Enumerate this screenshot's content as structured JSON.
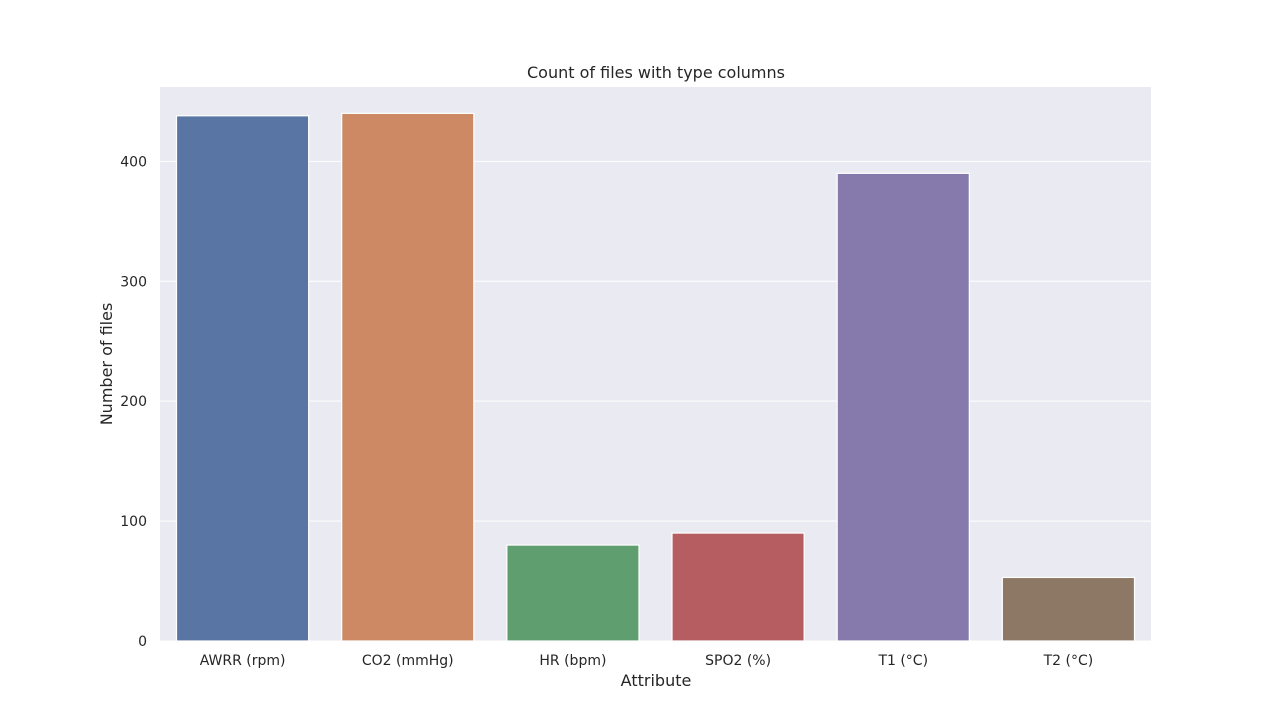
{
  "chart_data": {
    "type": "bar",
    "title": "Count of files with type columns",
    "xlabel": "Attribute",
    "ylabel": "Number of files",
    "categories": [
      "AWRR (rpm)",
      "CO2 (mmHg)",
      "HR (bpm)",
      "SPO2 (%)",
      "T1 (°C)",
      "T2 (°C)"
    ],
    "values": [
      438,
      440,
      80,
      90,
      390,
      53
    ],
    "colors": [
      "#5875a4",
      "#cc8963",
      "#5f9e6e",
      "#b55d60",
      "#857aab",
      "#8d7866"
    ],
    "yticks": [
      0,
      100,
      200,
      300,
      400
    ],
    "ylim": [
      0,
      462
    ],
    "grid": true,
    "legend": "none"
  }
}
